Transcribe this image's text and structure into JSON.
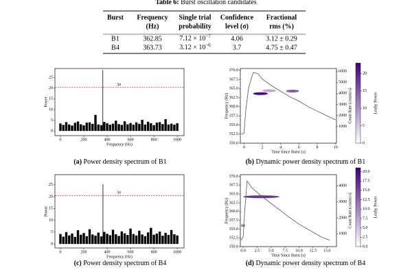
{
  "table": {
    "title_label": "Table 6:",
    "title": "Burst oscillation candidates",
    "header": [
      [
        "Burst"
      ],
      [
        "Frequency",
        "(Hz)"
      ],
      [
        "Single trial",
        "probability"
      ],
      [
        "Confidence",
        "level (σ)"
      ],
      [
        "Fractional",
        "rms (%)"
      ]
    ],
    "rows": [
      [
        "B1",
        "362.85",
        {
          "mantissa": "7.12 × 10",
          "exponent": "−7"
        },
        "4.06",
        "3.12 ± 0.29"
      ],
      [
        "B4",
        "363.73",
        {
          "mantissa": "3.12 × 10",
          "exponent": "−6"
        },
        "3.7",
        "4.75 ± 0.47"
      ]
    ]
  },
  "chart_data": [
    {
      "type": "spectrum",
      "caption_label": "(a)",
      "caption": "Power density spectrum of B1",
      "xlabel": "Frequency (Hz)",
      "ylabel": "Power",
      "xlim": [
        -47,
        1058
      ],
      "ylim": [
        -2.2,
        29.2
      ],
      "xticks": [
        0,
        200,
        400,
        600,
        800,
        1000
      ],
      "yticks": [
        0,
        5,
        10,
        15,
        20,
        25
      ],
      "threshold": 20.3,
      "threshold_label": "3σ",
      "threshold_color": "#e41a1c",
      "color": "#000000",
      "x": [
        0,
        25,
        50,
        75,
        100,
        125,
        150,
        175,
        200,
        225,
        250,
        275,
        300,
        325,
        350,
        375,
        400,
        425,
        450,
        475,
        500,
        525,
        550,
        575,
        600,
        625,
        650,
        675,
        700,
        725,
        750,
        775,
        800,
        825,
        850,
        875,
        900,
        925,
        950,
        975,
        1000
      ],
      "values": [
        3.5,
        2.8,
        4.1,
        3.0,
        2.5,
        3.8,
        4.4,
        3.1,
        2.6,
        3.9,
        4.0,
        3.3,
        7.5,
        3.0,
        2.7,
        4.2,
        3.6,
        2.9,
        3.4,
        4.8,
        3.2,
        2.8,
        4.5,
        3.1,
        3.7,
        2.9,
        4.0,
        3.3,
        5.2,
        3.0,
        4.3,
        3.6,
        2.7,
        3.9,
        4.1,
        3.2,
        5.5,
        3.0,
        3.4,
        2.9,
        3.6
      ],
      "peak": {
        "x": 363,
        "value": 28.5
      }
    },
    {
      "type": "dynamic",
      "caption_label": "(b)",
      "caption": "Dynamic power density spectrum of B1",
      "xlabel": "Time Since Burst (s)",
      "ylabel": "Frequency (Hz)",
      "y2label": "Count Rate (counts/s)",
      "colorbar_label": "Leahy Power",
      "xlim": [
        -0.4,
        10.1
      ],
      "ylim": [
        350,
        370.5
      ],
      "xticks": [
        0,
        2,
        4,
        6,
        8,
        10
      ],
      "yticks": [
        {
          "value": 350,
          "label": "350.0"
        },
        {
          "value": 352.5,
          "label": "352.5"
        },
        {
          "value": 355,
          "label": "355.0"
        },
        {
          "value": 357.5,
          "label": "357.5"
        },
        {
          "value": 360,
          "label": "360.0"
        },
        {
          "value": 362.5,
          "label": "362.5"
        },
        {
          "value": 365,
          "label": "365.0"
        },
        {
          "value": 367.5,
          "label": "367.5"
        },
        {
          "value": 370,
          "label": "370.0"
        }
      ],
      "y2lim": [
        -500,
        6250
      ],
      "y2ticks": [
        1000,
        2000,
        3000,
        4000,
        5000,
        6000
      ],
      "clim": [
        0,
        23
      ],
      "cticks": [
        0,
        5,
        10,
        15,
        20
      ],
      "colormap": [
        "#ffffff",
        "#3f007d"
      ],
      "color": "#555555",
      "features": [
        {
          "t": [
            1.0,
            2.6
          ],
          "frequency": 363.6,
          "power": 22
        },
        {
          "t": [
            4.6,
            6.0
          ],
          "frequency": 364.3,
          "power": 15
        },
        {
          "t": [
            2.0,
            3.5
          ],
          "frequency": 364.4,
          "power": 8
        }
      ],
      "x": [
        -0.3,
        0,
        0.2,
        0.5,
        1,
        1.5,
        2,
        3,
        4,
        5,
        6,
        7,
        8,
        9,
        10
      ],
      "values": [
        300,
        400,
        2500,
        4500,
        5900,
        5800,
        5300,
        4700,
        4200,
        3700,
        3300,
        2800,
        2400,
        2000,
        1600
      ]
    },
    {
      "type": "spectrum",
      "caption_label": "(c)",
      "caption": "Power density spectrum of B4",
      "xlabel": "Frequency (Hz)",
      "ylabel": "Power",
      "xlim": [
        -47,
        1058
      ],
      "ylim": [
        -1.7,
        29.3
      ],
      "xticks": [
        0,
        200,
        400,
        600,
        800,
        1000
      ],
      "yticks": [
        0,
        5,
        10,
        15,
        20,
        25
      ],
      "threshold": 20.5,
      "threshold_label": "3σ",
      "threshold_color": "#e41a1c",
      "color": "#000000",
      "x": [
        0,
        25,
        50,
        75,
        100,
        125,
        150,
        175,
        200,
        225,
        250,
        275,
        300,
        325,
        350,
        375,
        400,
        425,
        450,
        475,
        500,
        525,
        550,
        575,
        600,
        625,
        650,
        675,
        700,
        725,
        750,
        775,
        800,
        825,
        850,
        875,
        900,
        925,
        950,
        975,
        1000
      ],
      "values": [
        4.2,
        3.1,
        5.0,
        3.6,
        4.4,
        3.0,
        5.8,
        3.9,
        4.6,
        3.3,
        6.2,
        4.0,
        3.5,
        4.8,
        3.2,
        5.1,
        4.3,
        3.7,
        6.0,
        4.1,
        3.4,
        5.3,
        4.5,
        3.8,
        6.5,
        4.2,
        3.6,
        5.6,
        4.0,
        3.3,
        4.9,
        6.8,
        3.9,
        4.4,
        5.2,
        3.5,
        4.7,
        3.8,
        5.9,
        4.1,
        3.6
      ],
      "peak": {
        "x": 364,
        "value": 25.3
      }
    },
    {
      "type": "dynamic",
      "caption_label": "(d)",
      "caption": "Dynamic power density spectrum of B4",
      "xlabel": "Time Since Burst (s)",
      "ylabel": "Frequency (Hz)",
      "y2label": "Count Rate (counts/s)",
      "colorbar_label": "Leahy Power",
      "xlim": [
        -0.5,
        16.7
      ],
      "ylim": [
        350,
        370.5
      ],
      "xticks": [
        {
          "value": 0,
          "label": "0.0"
        },
        {
          "value": 2.5,
          "label": "2.5"
        },
        {
          "value": 5,
          "label": "5.0"
        },
        {
          "value": 7.5,
          "label": "7.5"
        },
        {
          "value": 10,
          "label": "10.0"
        },
        {
          "value": 12.5,
          "label": "12.5"
        },
        {
          "value": 15,
          "label": "15.0"
        }
      ],
      "yticks": [
        {
          "value": 350,
          "label": "350.0"
        },
        {
          "value": 352.5,
          "label": "352.5"
        },
        {
          "value": 355,
          "label": "355.0"
        },
        {
          "value": 357.5,
          "label": "357.5"
        },
        {
          "value": 360,
          "label": "360.0"
        },
        {
          "value": 362.5,
          "label": "362.5"
        },
        {
          "value": 365,
          "label": "365.0"
        },
        {
          "value": 367.5,
          "label": "367.5"
        },
        {
          "value": 370,
          "label": "370.0"
        }
      ],
      "y2lim": [
        200,
        4700
      ],
      "y2ticks": [
        1000,
        2000,
        3000,
        4000
      ],
      "clim": [
        0,
        21
      ],
      "cticks": [
        {
          "value": 0,
          "label": "0.0"
        },
        {
          "value": 2.5,
          "label": "2.5"
        },
        {
          "value": 5,
          "label": "5.0"
        },
        {
          "value": 7.5,
          "label": "7.5"
        },
        {
          "value": 10,
          "label": "10.0"
        },
        {
          "value": 12.5,
          "label": "12.5"
        },
        {
          "value": 15,
          "label": "15.0"
        },
        {
          "value": 17.5,
          "label": "17.5"
        },
        {
          "value": 20,
          "label": "20.0"
        }
      ],
      "colormap": [
        "#ffffff",
        "#3f007d"
      ],
      "color": "#555555",
      "features": [
        {
          "t": [
            0,
            6.5
          ],
          "frequency": 364.2,
          "power": 17
        },
        {
          "t": [
            -0.4,
            0.4
          ],
          "frequency": 356,
          "power": 10
        }
      ],
      "x": [
        -0.4,
        0,
        0.3,
        0.7,
        1.5,
        2.5,
        3.5,
        5,
        6.5,
        8,
        10,
        12,
        14,
        15.5
      ],
      "values": [
        600,
        800,
        2500,
        4300,
        3900,
        3600,
        3300,
        2900,
        2500,
        2100,
        1600,
        1200,
        800,
        600
      ]
    }
  ]
}
